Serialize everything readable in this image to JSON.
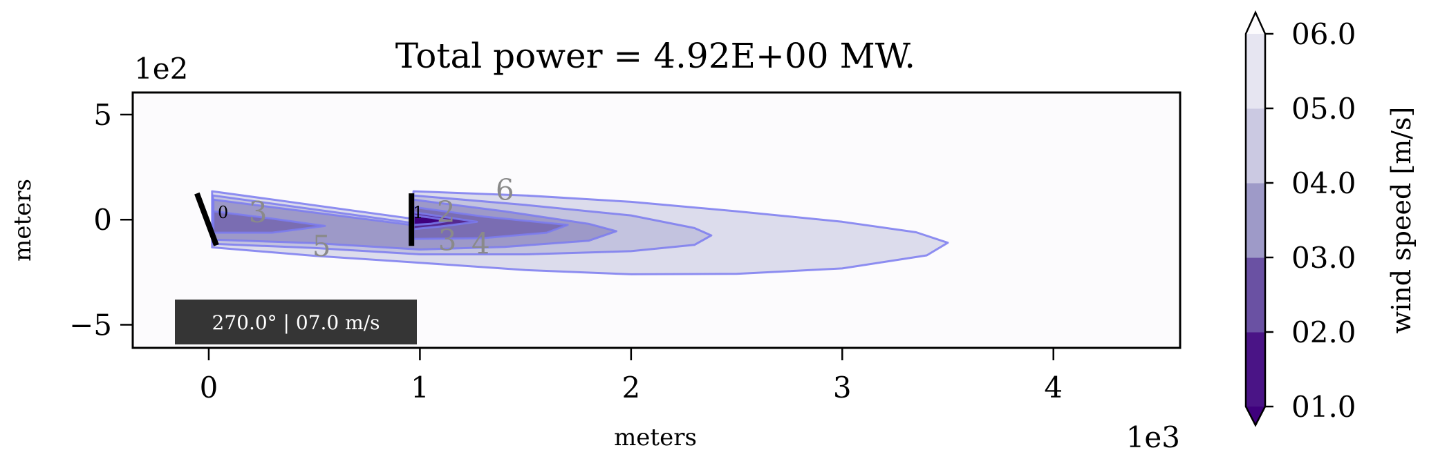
{
  "chart_data": {
    "type": "contour",
    "title": "Total power = 4.92E+00 MW.",
    "xlabel": "meters",
    "ylabel": "meters",
    "x_offset_label": "1e3",
    "y_offset_label": "1e2",
    "xlim": [
      -360,
      4600
    ],
    "ylim": [
      -610,
      605
    ],
    "xticks": [
      {
        "v": 0,
        "label": "0"
      },
      {
        "v": 1000,
        "label": "1"
      },
      {
        "v": 2000,
        "label": "2"
      },
      {
        "v": 3000,
        "label": "3"
      },
      {
        "v": 4000,
        "label": "4"
      }
    ],
    "yticks": [
      {
        "v": 500,
        "label": "5"
      },
      {
        "v": 0,
        "label": "0"
      },
      {
        "v": -500,
        "label": "−5"
      }
    ],
    "background_color": "#fcfbfd",
    "edge_color": "#7b7bf0",
    "contours": [
      {
        "level": 6,
        "color": "#dcdcec",
        "polygons": [
          [
            [
              16,
              135
            ],
            [
              960,
              5
            ],
            [
              970,
              135
            ],
            [
              1500,
              115
            ],
            [
              2000,
              85
            ],
            [
              2500,
              40
            ],
            [
              3000,
              -10
            ],
            [
              3350,
              -60
            ],
            [
              3500,
              -110
            ],
            [
              3400,
              -170
            ],
            [
              3000,
              -232
            ],
            [
              2500,
              -258
            ],
            [
              2000,
              -260
            ],
            [
              1500,
              -240
            ],
            [
              1000,
              -205
            ],
            [
              500,
              -172
            ],
            [
              16,
              -132
            ]
          ]
        ]
      },
      {
        "level": 5,
        "color": "#c3c3df",
        "polygons": [
          [
            [
              20,
              115
            ],
            [
              960,
              -15
            ],
            [
              970,
              115
            ],
            [
              1500,
              70
            ],
            [
              2000,
              20
            ],
            [
              2300,
              -40
            ],
            [
              2380,
              -75
            ],
            [
              2300,
              -120
            ],
            [
              2000,
              -150
            ],
            [
              1500,
              -165
            ],
            [
              1000,
              -165
            ],
            [
              500,
              -135
            ],
            [
              20,
              -115
            ]
          ]
        ]
      },
      {
        "level": 4,
        "color": "#9d99c8",
        "polygons": [
          [
            [
              22,
              95
            ],
            [
              960,
              -25
            ],
            [
              970,
              95
            ],
            [
              1400,
              40
            ],
            [
              1800,
              -20
            ],
            [
              1930,
              -55
            ],
            [
              1800,
              -100
            ],
            [
              1400,
              -130
            ],
            [
              1000,
              -142
            ],
            [
              500,
              -112
            ],
            [
              22,
              -95
            ]
          ]
        ]
      },
      {
        "level": 3,
        "color": "#7a6db2",
        "polygons": [
          [
            [
              22,
              40
            ],
            [
              300,
              5
            ],
            [
              550,
              -30
            ],
            [
              300,
              -62
            ],
            [
              22,
              -62
            ]
          ],
          [
            [
              970,
              60
            ],
            [
              1300,
              15
            ],
            [
              1700,
              -25
            ],
            [
              1600,
              -62
            ],
            [
              1300,
              -88
            ],
            [
              970,
              -92
            ]
          ]
        ]
      },
      {
        "level": 2,
        "color": "#55298f",
        "polygons": [
          [
            [
              970,
              35
            ],
            [
              1100,
              15
            ],
            [
              1270,
              -10
            ],
            [
              1100,
              -32
            ],
            [
              970,
              -45
            ]
          ]
        ]
      },
      {
        "level": 1,
        "color": "#3f007d",
        "polygons": [
          [
            [
              970,
              20
            ],
            [
              1050,
              10
            ],
            [
              1140,
              -5
            ],
            [
              1050,
              -20
            ],
            [
              970,
              -25
            ]
          ]
        ]
      }
    ],
    "contour_labels": [
      {
        "text": "3",
        "x": 233,
        "y": 33
      },
      {
        "text": "5",
        "x": 534,
        "y": -128
      },
      {
        "text": "6",
        "x": 1402,
        "y": 141
      },
      {
        "text": "2",
        "x": 1124,
        "y": 36
      },
      {
        "text": "3",
        "x": 1130,
        "y": -99
      },
      {
        "text": "4",
        "x": 1288,
        "y": -115
      }
    ],
    "turbines": [
      {
        "id": "0",
        "x1": -56,
        "y1": 125,
        "x2": 36,
        "y2": -122
      },
      {
        "id": "1",
        "x1": 960,
        "y1": 125,
        "x2": 960,
        "y2": -125
      }
    ],
    "info_box": "270.0° | 07.0 m/s",
    "colorbar": {
      "label": "wind speed [m/s]",
      "levels": [
        1,
        2,
        3,
        4,
        5,
        6
      ],
      "tick_labels": [
        "01.0",
        "02.0",
        "03.0",
        "04.0",
        "05.0",
        "06.0"
      ],
      "colors": [
        "#4a1486",
        "#6a51a3",
        "#9e9ac8",
        "#cbc9e2",
        "#e6e5f1"
      ],
      "under_color": "#3f007d",
      "over_color": "#fcfbfd"
    }
  }
}
